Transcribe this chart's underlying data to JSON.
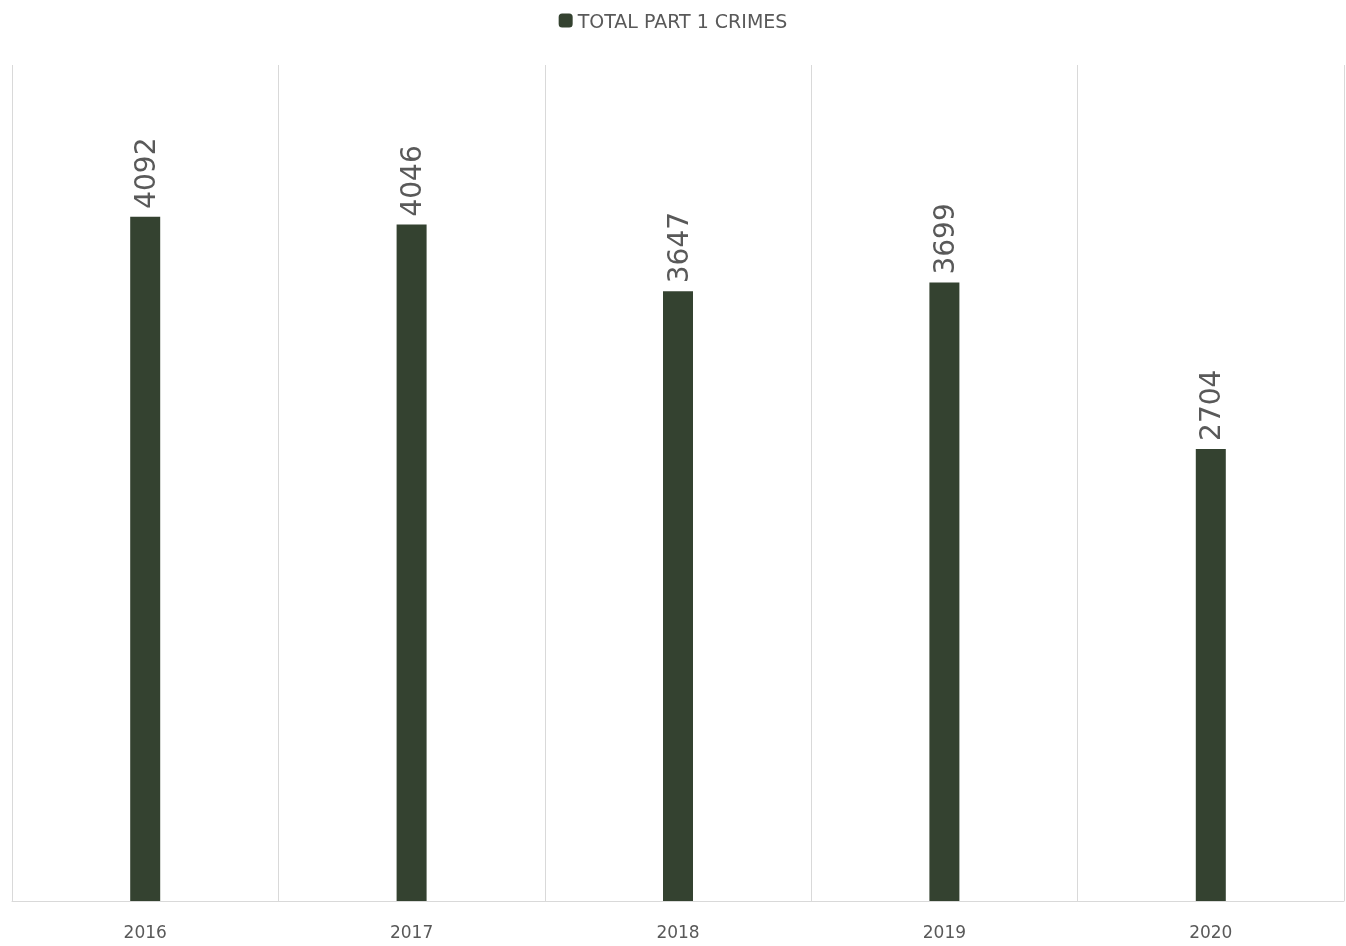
{
  "chart_data": {
    "type": "bar",
    "categories": [
      "2016",
      "2017",
      "2018",
      "2019",
      "2020"
    ],
    "series": [
      {
        "name": "TOTAL PART 1 CRIMES",
        "color": "#344230",
        "values": [
          4092,
          4046,
          3647,
          3699,
          2704
        ]
      }
    ],
    "data_labels": true,
    "grid": "x",
    "legend": "top",
    "tick_labels": "x"
  }
}
